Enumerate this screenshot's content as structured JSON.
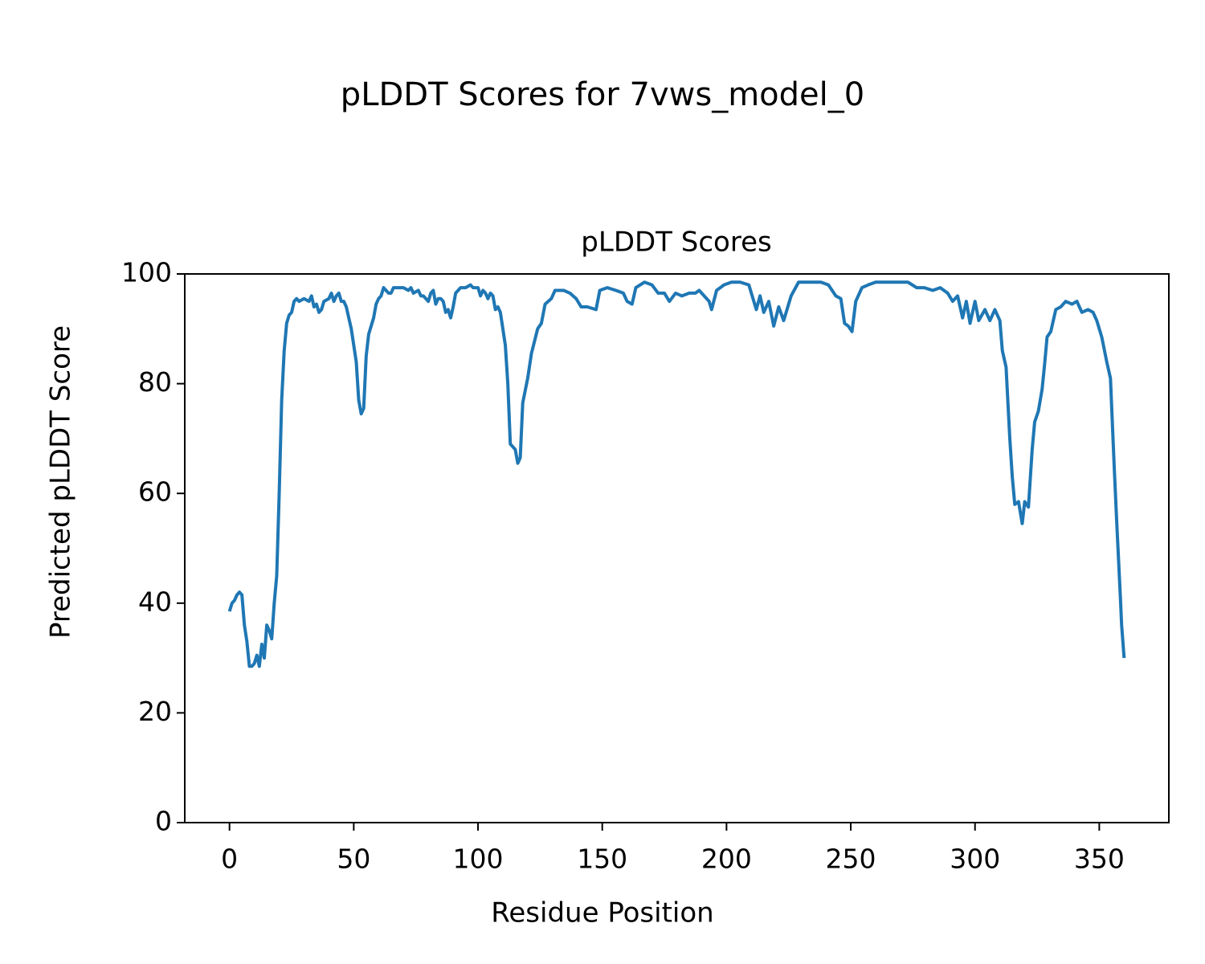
{
  "chart_data": {
    "type": "line",
    "title": "pLDDT Scores for 7vws_model_0",
    "subtitle": "pLDDT Scores",
    "x_label": "Residue Position",
    "y_label": "Predicted pLDDT Score",
    "color": "#1f77b4",
    "grid": false,
    "xlim": [
      -18,
      378
    ],
    "xticks": [
      0,
      50,
      100,
      150,
      200,
      250,
      300,
      350
    ],
    "ylim": [
      0,
      100
    ],
    "yticks": [
      0,
      20,
      40,
      60,
      80,
      100
    ],
    "x": [
      0,
      1,
      2,
      3,
      4,
      5,
      6,
      7,
      8,
      9,
      10,
      11,
      12,
      13,
      14,
      15,
      16,
      17,
      18,
      19,
      20,
      21,
      22,
      23,
      24,
      25,
      26,
      27,
      28,
      30,
      32,
      33,
      34,
      35,
      36,
      37,
      38,
      40,
      41,
      42,
      43,
      44,
      45,
      46,
      47,
      48,
      49,
      50,
      51,
      52,
      53,
      54,
      55,
      56,
      58,
      59,
      60,
      61,
      62,
      63,
      64,
      65,
      66,
      68,
      70,
      72,
      73,
      74,
      76,
      77,
      78,
      80,
      81,
      82,
      83,
      84,
      85,
      86,
      87,
      88,
      89,
      90,
      91,
      92,
      93,
      95,
      97,
      98,
      100,
      101,
      102,
      103,
      104,
      105,
      106,
      107,
      108,
      109,
      110,
      111,
      112,
      113,
      114,
      115,
      116,
      117,
      118,
      120,
      121.5,
      124,
      125.5,
      127,
      129.5,
      131,
      134.5,
      137,
      139.5,
      141.5,
      144,
      147.5,
      149,
      152,
      155.5,
      158.5,
      160,
      162,
      163.5,
      167,
      170,
      172.5,
      175,
      177,
      179.5,
      182,
      185,
      187.5,
      189,
      193,
      194,
      196,
      199,
      202,
      205.5,
      209,
      210,
      212,
      213.5,
      215,
      217,
      219,
      221,
      223,
      226,
      229,
      231,
      234.5,
      238,
      241,
      244,
      246,
      247.5,
      249,
      250.5,
      252,
      254.5,
      257,
      260,
      263.5,
      267,
      270,
      273,
      276.5,
      279.5,
      283,
      286,
      289,
      291,
      293,
      295,
      296.5,
      298,
      300,
      301.5,
      304,
      306,
      308,
      310,
      311,
      312.5,
      314,
      315,
      316,
      317.5,
      319,
      320,
      321.5,
      323,
      324,
      325.5,
      327,
      328,
      329,
      330.5,
      332.5,
      334.5,
      336.5,
      339,
      341,
      343,
      345.5,
      347.5,
      349,
      351,
      353,
      354.5,
      356,
      357,
      358.5,
      359,
      360
    ],
    "values": [
      38.5,
      40,
      40.5,
      41.5,
      42,
      41.5,
      36,
      33,
      28.5,
      28.5,
      29,
      30.5,
      28.5,
      32.5,
      30,
      36,
      35,
      33.5,
      40,
      45,
      60,
      77,
      86,
      91,
      92.5,
      93,
      95,
      95.5,
      95,
      95.5,
      95,
      96,
      94,
      94.5,
      93,
      93.5,
      95,
      95.5,
      96.5,
      95,
      96,
      96.5,
      95,
      95,
      94,
      92,
      90,
      87,
      84,
      77,
      74.5,
      75.5,
      85,
      89,
      92,
      94.5,
      95.5,
      96,
      97.5,
      97,
      96.5,
      96.5,
      97.5,
      97.5,
      97.5,
      97,
      97.5,
      96.5,
      97,
      96,
      96,
      95,
      96.5,
      97,
      94.5,
      95.5,
      95.5,
      95,
      93,
      93.5,
      92,
      94,
      96.5,
      97,
      97.5,
      97.5,
      98,
      97.5,
      97.5,
      96,
      97,
      96.5,
      95.5,
      96.5,
      96,
      93.5,
      94,
      93,
      90,
      87,
      80,
      69,
      68.5,
      68,
      65.5,
      66.5,
      76.5,
      81,
      85.5,
      90,
      91,
      94.5,
      95.5,
      97,
      97,
      96.5,
      95.5,
      94,
      94,
      93.5,
      97,
      97.5,
      97,
      96.5,
      95,
      94.5,
      97.5,
      98.5,
      98,
      96.5,
      96.5,
      95,
      96.5,
      96,
      96.5,
      96.5,
      97,
      95,
      93.5,
      97,
      98,
      98.5,
      98.5,
      98,
      96.5,
      93.5,
      96,
      93,
      95,
      90.5,
      94,
      91.5,
      96,
      98.5,
      98.5,
      98.5,
      98.5,
      98,
      96,
      95.5,
      91,
      90.5,
      89.5,
      95,
      97.5,
      98,
      98.5,
      98.5,
      98.5,
      98.5,
      98.5,
      97.5,
      97.5,
      97,
      97.5,
      96.5,
      95,
      96,
      92,
      95,
      91,
      95,
      91.5,
      93.5,
      91.5,
      93.5,
      91.5,
      86,
      83,
      70,
      63,
      58,
      58.5,
      54.5,
      58.5,
      57.5,
      68,
      73,
      75,
      79,
      83.5,
      88.5,
      89.5,
      93.5,
      94,
      95,
      94.5,
      95,
      93,
      93.5,
      93,
      91.5,
      88.5,
      84,
      81,
      65,
      55,
      41,
      36,
      30
    ]
  }
}
